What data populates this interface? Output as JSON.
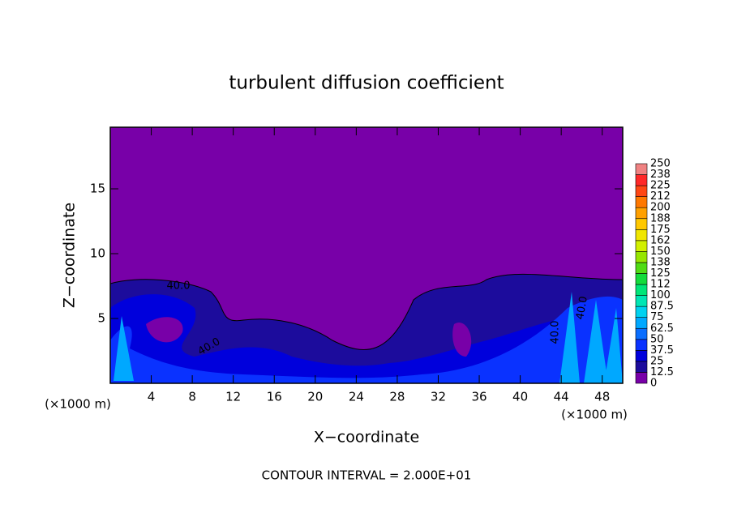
{
  "chart_data": {
    "type": "contour",
    "title": "turbulent diffusion coefficient",
    "x_label": "X−coordinate",
    "y_label": "Z−coordinate",
    "x_unit_label": "(×1000 m)",
    "y_unit_label": "(×1000 m)",
    "xlim": [
      0,
      50
    ],
    "xticks": [
      4,
      8,
      12,
      16,
      20,
      24,
      28,
      32,
      36,
      40,
      44,
      48
    ],
    "ylim": [
      0,
      19.75
    ],
    "yticks": [
      5,
      10,
      15
    ],
    "colorbar": {
      "levels": [
        0,
        12.5,
        25,
        37.5,
        50,
        62.5,
        75,
        87.5,
        100,
        {
          "value": 112.5,
          "label": "112"
        },
        125,
        {
          "value": 137.5,
          "label": "138"
        },
        150,
        {
          "value": 162.5,
          "label": "162"
        },
        175,
        {
          "value": 187.5,
          "label": "188"
        },
        200,
        {
          "value": 212.5,
          "label": "212"
        },
        225,
        {
          "value": 237.5,
          "label": "238"
        },
        250
      ],
      "colors": [
        "#7800a8",
        "#1c0c9c",
        "#0000dc",
        "#0a32ff",
        "#0a6eff",
        "#00a8ff",
        "#00d2f0",
        "#00e6b4",
        "#00e678",
        "#14dc3c",
        "#50dc14",
        "#96e600",
        "#d2f000",
        "#f0e600",
        "#ffc800",
        "#ffa000",
        "#ff7800",
        "#ff4614",
        "#ff2828",
        "#f08282"
      ]
    },
    "annotations": [
      "40.0",
      "40.0",
      "40.0",
      "40.0"
    ],
    "footer": "CONTOUR INTERVAL = 2.000E+01"
  }
}
